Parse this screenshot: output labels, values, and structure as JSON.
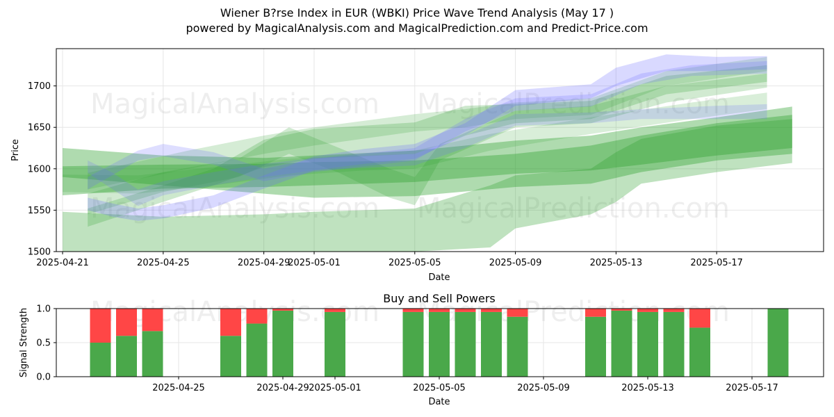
{
  "title": "Wiener B?rse Index in EUR (WBKI) Price Wave Trend Analysis (May 17 )",
  "subtitle": "powered by MagicalAnalysis.com and MagicalPrediction.com and Predict-Price.com",
  "watermarks": [
    "MagicalAnalysis.com",
    "MagicalPrediction.com"
  ],
  "colors": {
    "green": "#2ca02c",
    "blue": "#6b6bff",
    "buy": "#4aa84a",
    "sell": "#ff4646"
  },
  "chart_data": [
    {
      "type": "area",
      "xlabel": "Date",
      "ylabel": "Price",
      "xlim": [
        "2025-04-20T18:00",
        "2025-05-21T06:00"
      ],
      "ylim": [
        1500,
        1745
      ],
      "x_ticks": [
        "2025-04-21",
        "2025-04-25",
        "2025-04-29",
        "2025-05-01",
        "2025-05-05",
        "2025-05-09",
        "2025-05-13",
        "2025-05-17"
      ],
      "y_ticks": [
        1500,
        1550,
        1600,
        1650,
        1700
      ],
      "grid": true,
      "series": [
        {
          "color": "green",
          "opacity": 0.38,
          "x": [
            "2025-04-21",
            "2025-04-25",
            "2025-04-29",
            "2025-05-01",
            "2025-05-05",
            "2025-05-09",
            "2025-05-12",
            "2025-05-14",
            "2025-05-17",
            "2025-05-20"
          ],
          "upper": [
            1625,
            1616,
            1613,
            1616,
            1622,
            1634,
            1640,
            1650,
            1662,
            1675
          ],
          "lower": [
            1568,
            1576,
            1578,
            1580,
            1584,
            1594,
            1598,
            1605,
            1616,
            1625
          ]
        },
        {
          "color": "green",
          "opacity": 0.38,
          "x": [
            "2025-04-21",
            "2025-04-25",
            "2025-04-29",
            "2025-05-01",
            "2025-05-05",
            "2025-05-09",
            "2025-05-12",
            "2025-05-14",
            "2025-05-17",
            "2025-05-20"
          ],
          "upper": [
            1603,
            1605,
            1606,
            1608,
            1610,
            1618,
            1628,
            1640,
            1655,
            1665
          ],
          "lower": [
            1590,
            1580,
            1570,
            1565,
            1567,
            1578,
            1582,
            1596,
            1610,
            1618
          ]
        },
        {
          "color": "green",
          "opacity": 0.3,
          "x": [
            "2025-04-21",
            "2025-04-25",
            "2025-04-29",
            "2025-05-01",
            "2025-05-05",
            "2025-05-08",
            "2025-05-09",
            "2025-05-12",
            "2025-05-13",
            "2025-05-14",
            "2025-05-17",
            "2025-05-20"
          ],
          "upper": [
            1548,
            1542,
            1545,
            1548,
            1552,
            1580,
            1592,
            1600,
            1620,
            1636,
            1652,
            1660
          ],
          "lower": [
            1500,
            1500,
            1500,
            1500,
            1500,
            1505,
            1528,
            1545,
            1560,
            1582,
            1596,
            1607
          ]
        },
        {
          "color": "green",
          "opacity": 0.24,
          "x": [
            "2025-04-22",
            "2025-04-25",
            "2025-04-27",
            "2025-04-29",
            "2025-05-01",
            "2025-05-03",
            "2025-05-05",
            "2025-05-07",
            "2025-05-09",
            "2025-05-12",
            "2025-05-15",
            "2025-05-19"
          ],
          "upper": [
            1552,
            1580,
            1600,
            1635,
            1648,
            1652,
            1656,
            1676,
            1678,
            1682,
            1712,
            1725
          ],
          "lower": [
            1530,
            1560,
            1580,
            1602,
            1612,
            1615,
            1618,
            1640,
            1655,
            1660,
            1690,
            1705
          ]
        },
        {
          "color": "green",
          "opacity": 0.22,
          "x": [
            "2025-04-22",
            "2025-04-25",
            "2025-04-28",
            "2025-04-30",
            "2025-05-02",
            "2025-05-04",
            "2025-05-05",
            "2025-05-06",
            "2025-05-09",
            "2025-05-12",
            "2025-05-15",
            "2025-05-19"
          ],
          "upper": [
            1570,
            1596,
            1612,
            1650,
            1625,
            1600,
            1590,
            1630,
            1670,
            1676,
            1700,
            1715
          ],
          "lower": [
            1545,
            1572,
            1590,
            1618,
            1595,
            1565,
            1556,
            1610,
            1650,
            1655,
            1680,
            1698
          ]
        },
        {
          "color": "green",
          "opacity": 0.2,
          "x": [
            "2025-04-22",
            "2025-04-26",
            "2025-04-29",
            "2025-05-01",
            "2025-05-05",
            "2025-05-07",
            "2025-05-09",
            "2025-05-12",
            "2025-05-15",
            "2025-05-19"
          ],
          "upper": [
            1595,
            1622,
            1640,
            1650,
            1666,
            1672,
            1680,
            1685,
            1718,
            1735
          ],
          "lower": [
            1575,
            1600,
            1618,
            1628,
            1645,
            1650,
            1660,
            1665,
            1700,
            1718
          ]
        },
        {
          "color": "green",
          "opacity": 0.18,
          "x": [
            "2025-04-21",
            "2025-04-24",
            "2025-04-27",
            "2025-04-30",
            "2025-05-03",
            "2025-05-05",
            "2025-05-08",
            "2025-05-12",
            "2025-05-16",
            "2025-05-19"
          ],
          "upper": [
            1593,
            1592,
            1602,
            1612,
            1618,
            1622,
            1642,
            1662,
            1680,
            1692
          ],
          "lower": [
            1572,
            1570,
            1580,
            1592,
            1598,
            1600,
            1622,
            1642,
            1660,
            1672
          ]
        },
        {
          "color": "blue",
          "opacity": 0.26,
          "x": [
            "2025-04-22",
            "2025-04-23",
            "2025-04-24",
            "2025-04-25",
            "2025-04-27",
            "2025-04-29",
            "2025-05-01",
            "2025-05-03",
            "2025-05-05",
            "2025-05-07",
            "2025-05-09",
            "2025-05-12",
            "2025-05-13",
            "2025-05-15",
            "2025-05-17",
            "2025-05-19"
          ],
          "upper": [
            1565,
            1558,
            1552,
            1556,
            1568,
            1592,
            1615,
            1624,
            1630,
            1655,
            1695,
            1702,
            1722,
            1738,
            1735,
            1736
          ],
          "lower": [
            1550,
            1542,
            1537,
            1540,
            1553,
            1576,
            1598,
            1606,
            1612,
            1640,
            1676,
            1685,
            1700,
            1718,
            1718,
            1720
          ]
        },
        {
          "color": "blue",
          "opacity": 0.22,
          "x": [
            "2025-04-22",
            "2025-04-24",
            "2025-04-25",
            "2025-04-27",
            "2025-04-29",
            "2025-05-01",
            "2025-05-05",
            "2025-05-07",
            "2025-05-09",
            "2025-05-12",
            "2025-05-14",
            "2025-05-16",
            "2025-05-19"
          ],
          "upper": [
            1590,
            1622,
            1630,
            1620,
            1600,
            1612,
            1625,
            1660,
            1685,
            1690,
            1715,
            1725,
            1730
          ],
          "lower": [
            1575,
            1610,
            1615,
            1605,
            1585,
            1596,
            1610,
            1645,
            1670,
            1675,
            1702,
            1712,
            1715
          ]
        },
        {
          "color": "blue",
          "opacity": 0.2,
          "x": [
            "2025-04-22",
            "2025-04-23",
            "2025-04-24",
            "2025-04-25",
            "2025-04-27",
            "2025-04-29",
            "2025-05-01",
            "2025-05-05",
            "2025-05-07",
            "2025-05-09",
            "2025-05-12",
            "2025-05-14",
            "2025-05-17",
            "2025-05-19"
          ],
          "upper": [
            1610,
            1595,
            1575,
            1585,
            1596,
            1606,
            1613,
            1618,
            1640,
            1666,
            1668,
            1672,
            1676,
            1678
          ],
          "lower": [
            1595,
            1575,
            1555,
            1568,
            1580,
            1590,
            1598,
            1604,
            1625,
            1652,
            1655,
            1660,
            1660,
            1660
          ]
        }
      ]
    },
    {
      "type": "bar",
      "title": "Buy and Sell Powers",
      "xlabel": "Date",
      "ylabel": "Signal Strength",
      "ylim": [
        0,
        1
      ],
      "y_ticks": [
        "0.0",
        "0.5",
        "1.0"
      ],
      "x_ticks": [
        "2025-04-25",
        "2025-04-29",
        "2025-05-01",
        "2025-05-05",
        "2025-05-09",
        "2025-05-13",
        "2025-05-17"
      ],
      "grid": true,
      "dates": [
        "2025-04-22",
        "2025-04-23",
        "2025-04-24",
        "2025-04-27",
        "2025-04-28",
        "2025-04-29",
        "2025-05-01",
        "2025-05-04",
        "2025-05-05",
        "2025-05-06",
        "2025-05-07",
        "2025-05-08",
        "2025-05-11",
        "2025-05-12",
        "2025-05-13",
        "2025-05-14",
        "2025-05-15",
        "2025-05-18"
      ],
      "buy": [
        0.5,
        0.6,
        0.67,
        0.6,
        0.78,
        0.97,
        0.95,
        0.95,
        0.95,
        0.95,
        0.95,
        0.88,
        0.88,
        0.97,
        0.95,
        0.95,
        0.72,
        1.0
      ],
      "sell": [
        0.5,
        0.4,
        0.33,
        0.4,
        0.22,
        0.03,
        0.05,
        0.05,
        0.05,
        0.05,
        0.05,
        0.12,
        0.12,
        0.03,
        0.05,
        0.05,
        0.28,
        0.0
      ]
    }
  ]
}
